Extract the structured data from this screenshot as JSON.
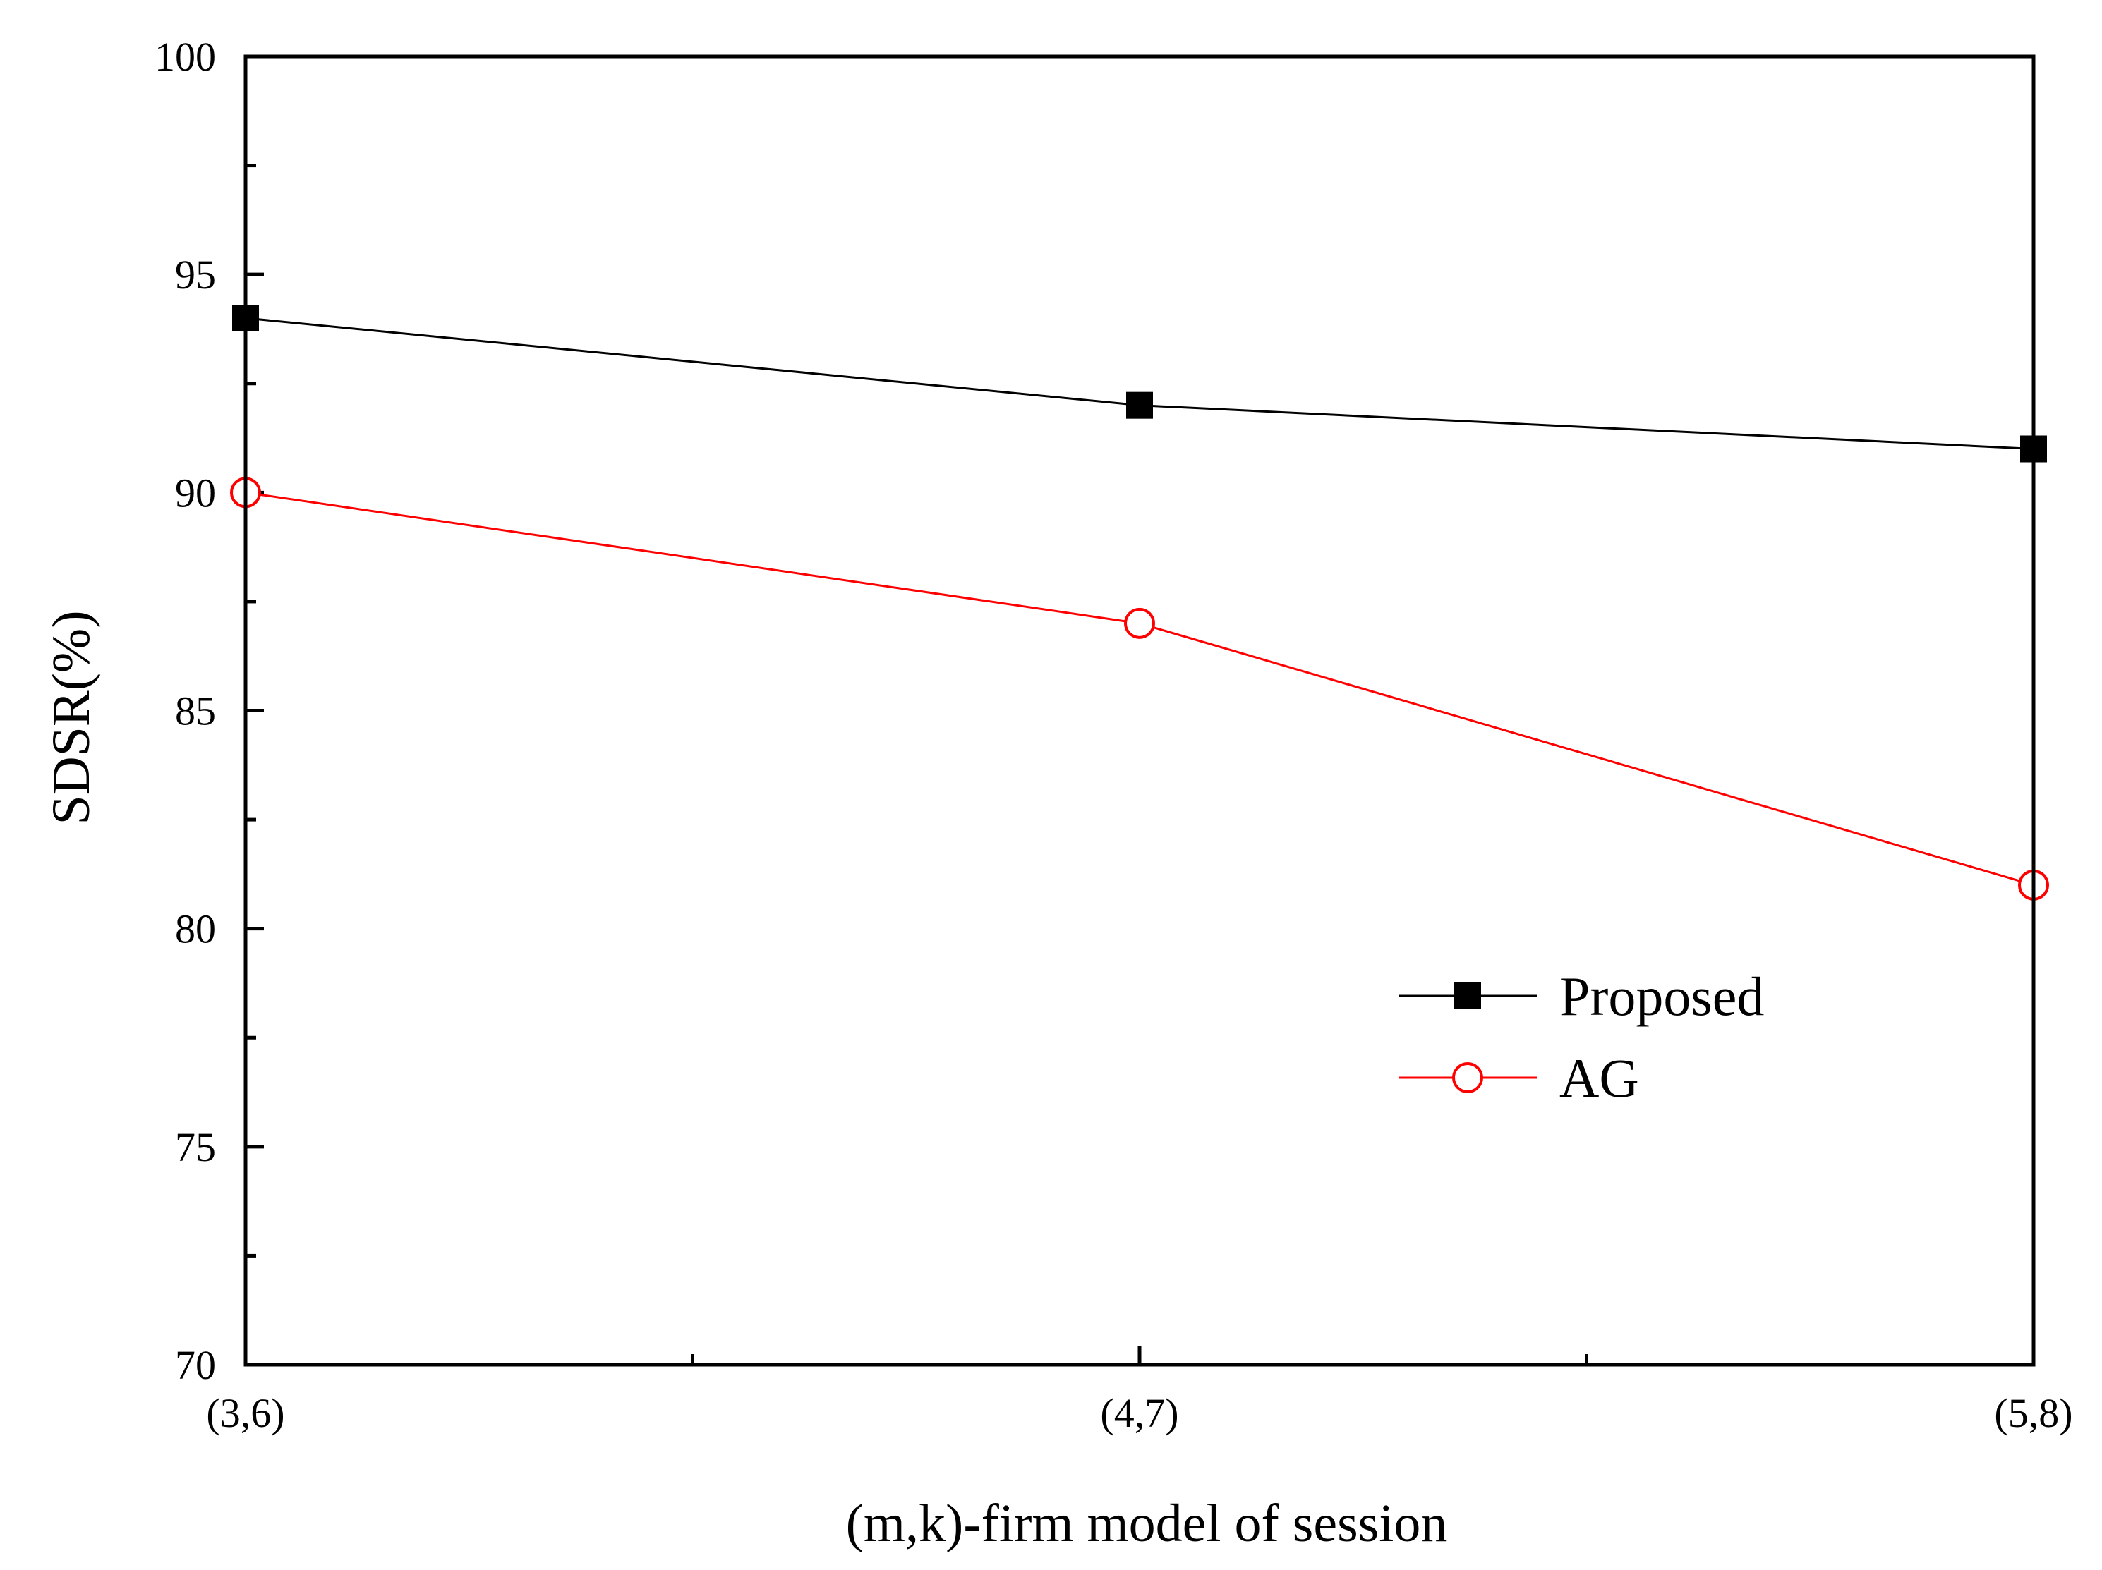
{
  "chart_data": {
    "type": "line",
    "title": "",
    "xlabel": "(m,k)-firm model of session",
    "ylabel": "SDSR(%)",
    "categories": [
      "(3,6)",
      "(4,7)",
      "(5,8)"
    ],
    "ylim": [
      70,
      100
    ],
    "yticks": [
      70,
      75,
      80,
      85,
      90,
      95,
      100
    ],
    "y_minor_step": 2.5,
    "x_minor_ticks": 1,
    "grid": false,
    "legend_position": "center-right",
    "series": [
      {
        "name": "Proposed",
        "values": [
          94,
          92,
          91
        ],
        "color": "#000000",
        "marker": "filled-square"
      },
      {
        "name": "AG",
        "values": [
          90,
          87,
          81
        ],
        "color": "#ff0000",
        "marker": "open-circle"
      }
    ]
  }
}
